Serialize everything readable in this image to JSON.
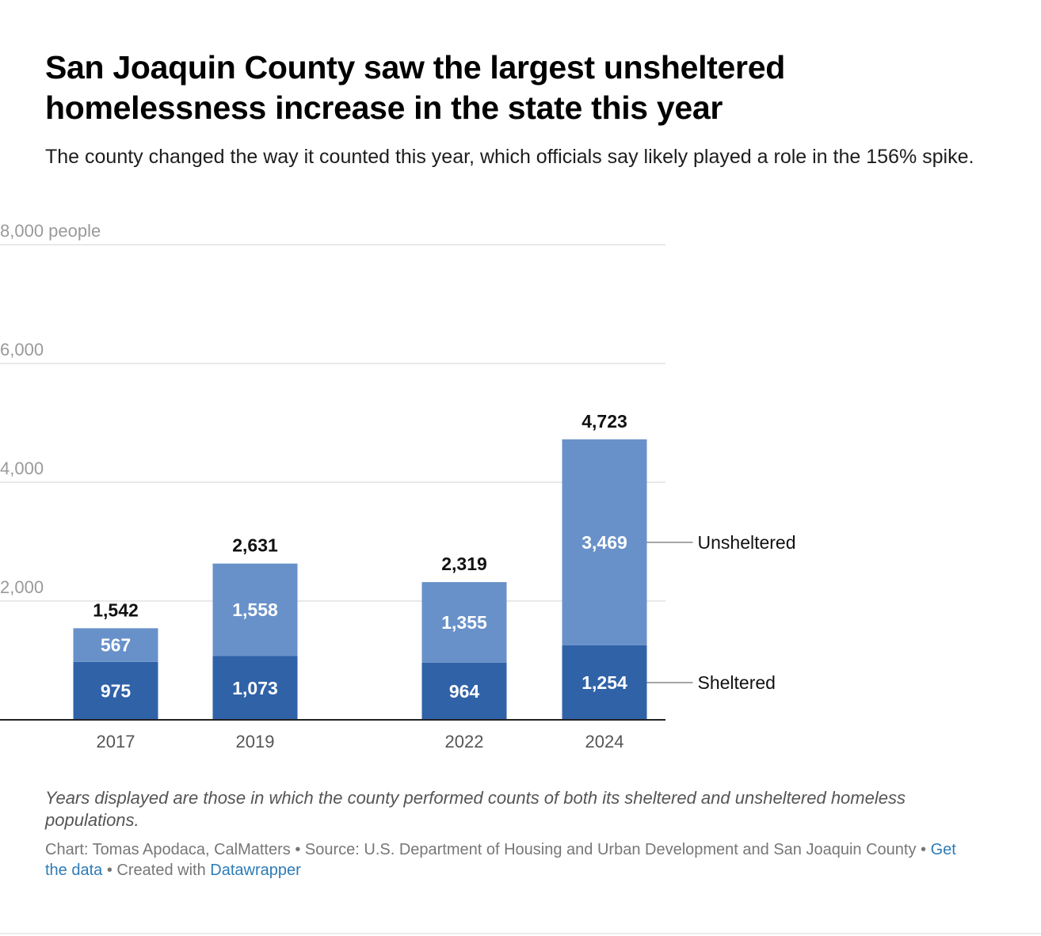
{
  "header": {
    "title": "San Joaquin County saw the largest unsheltered homelessness increase in the state this year",
    "subtitle": "The county changed the way it counted this year, which officials say likely played a role in the 156% spike."
  },
  "chart_data": {
    "type": "bar",
    "stacked": true,
    "categories": [
      "2017",
      "2019",
      "2022",
      "2024"
    ],
    "series": [
      {
        "name": "Sheltered",
        "values": [
          975,
          1073,
          964,
          1254
        ],
        "color": "#3062a8"
      },
      {
        "name": "Unsheltered",
        "values": [
          567,
          1558,
          1355,
          3469
        ],
        "color": "#6891c9"
      }
    ],
    "series_labels": {
      "Sheltered": [
        "975",
        "1,073",
        "964",
        "1,254"
      ],
      "Unsheltered": [
        "567",
        "1,558",
        "1,355",
        "3,469"
      ]
    },
    "totals": [
      1542,
      2631,
      2319,
      4723
    ],
    "total_labels": [
      "1,542",
      "2,631",
      "2,319",
      "4,723"
    ],
    "y_ticks": [
      2000,
      4000,
      6000,
      8000
    ],
    "y_tick_labels": [
      "2,000",
      "4,000",
      "6,000",
      "8,000 people"
    ],
    "ylim": [
      0,
      8000
    ],
    "gridlines": true,
    "legend_placement": "right, inline labels"
  },
  "footer": {
    "notes": "Years displayed are those in which the county performed counts of both its sheltered and unsheltered homeless populations.",
    "credit_prefix": "Chart: Tomas Apodaca, CalMatters • Source: U.S. Department of Housing and Urban Development and San Joaquin County • ",
    "get_data_label": "Get the data",
    "separator": " • Created with ",
    "datawrapper_label": "Datawrapper"
  }
}
